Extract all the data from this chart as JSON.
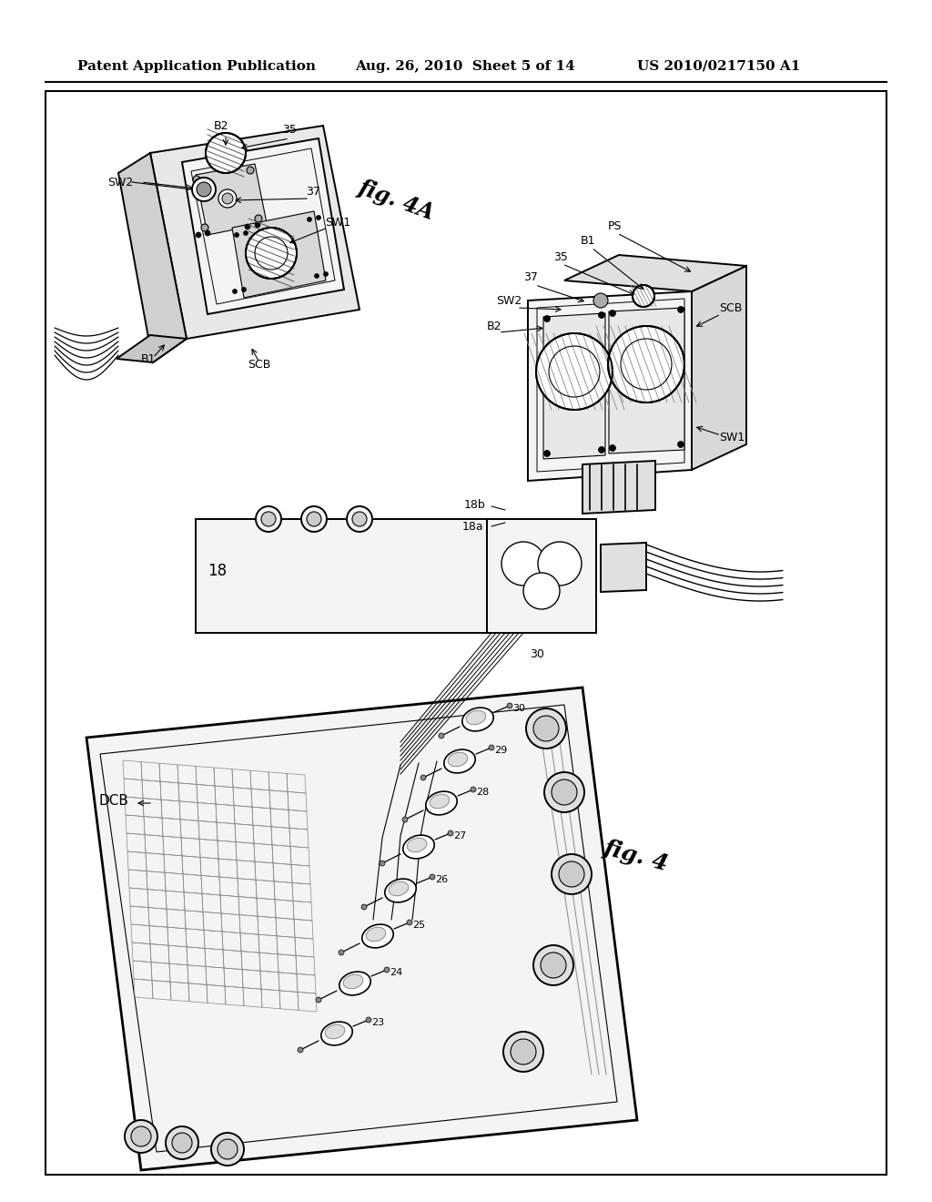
{
  "background_color": "#ffffff",
  "header_left": "Patent Application Publication",
  "header_center": "Aug. 26, 2010  Sheet 5 of 14",
  "header_right": "US 2010/0217150 A1",
  "header_fontsize": 11,
  "fig_width": 10.24,
  "fig_height": 13.2
}
